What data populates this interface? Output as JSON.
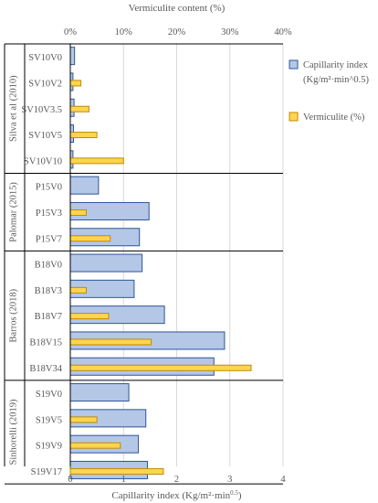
{
  "chart_data": {
    "type": "bar",
    "orientation": "horizontal",
    "top_axis": {
      "title": "Vermiculite content (%)",
      "ticks": [
        "0%",
        "10%",
        "20%",
        "30%",
        "40%"
      ],
      "range": [
        0,
        40
      ]
    },
    "bottom_axis": {
      "title": "Capillarity index (Kg/m²·min",
      "title_superscript": "0.5",
      "title_close": ")",
      "ticks": [
        "0",
        "1",
        "2",
        "3",
        "4"
      ],
      "range": [
        0,
        4
      ]
    },
    "legend": {
      "position": "right",
      "items": [
        {
          "label_line1": "Capillarity index",
          "label_line2": "(Kg/m²·min^0.5)",
          "color": "#b4c7e7",
          "border": "#2e5597"
        },
        {
          "label_line1": "Vermiculite (%)",
          "label_line2": "",
          "color": "#ffd54f",
          "border": "#c08a00"
        }
      ]
    },
    "colors": {
      "capillarity_fill": "#b4c7e7",
      "capillarity_stroke": "#2e5597",
      "vermiculite_fill": "#ffd54f",
      "vermiculite_stroke": "#c08a00",
      "group_lines": "#000000",
      "grid": "#d9d9d9"
    },
    "groups": [
      {
        "label": "Silva et al (2010)",
        "categories": [
          "SV10V0",
          "SV10V2",
          "SV10V3.5",
          "SV10V5",
          "SV10V10"
        ],
        "capillarity_index": [
          0.08,
          0.05,
          0.07,
          0.06,
          0.05
        ],
        "vermiculite_pct": [
          0,
          2,
          3.5,
          5,
          10
        ]
      },
      {
        "label": "Palomar (2015)",
        "categories": [
          "P15V0",
          "P15V3",
          "P15V7"
        ],
        "capillarity_index": [
          0.53,
          1.48,
          1.3
        ],
        "vermiculite_pct": [
          0,
          3,
          7.5
        ]
      },
      {
        "label": "Barros (2018)",
        "categories": [
          "B18V0",
          "B18V3",
          "B18V7",
          "B18V15",
          "B18V34"
        ],
        "capillarity_index": [
          1.35,
          1.2,
          1.77,
          2.9,
          2.7
        ],
        "vermiculite_pct": [
          0,
          3,
          7.2,
          15.2,
          34
        ]
      },
      {
        "label": "Sinhorelli (2019)",
        "categories": [
          "S19V0",
          "S19V5",
          "S19V9",
          "S19V17"
        ],
        "capillarity_index": [
          1.1,
          1.42,
          1.28,
          1.45
        ],
        "vermiculite_pct": [
          0,
          5,
          9.4,
          17.5
        ]
      }
    ]
  }
}
